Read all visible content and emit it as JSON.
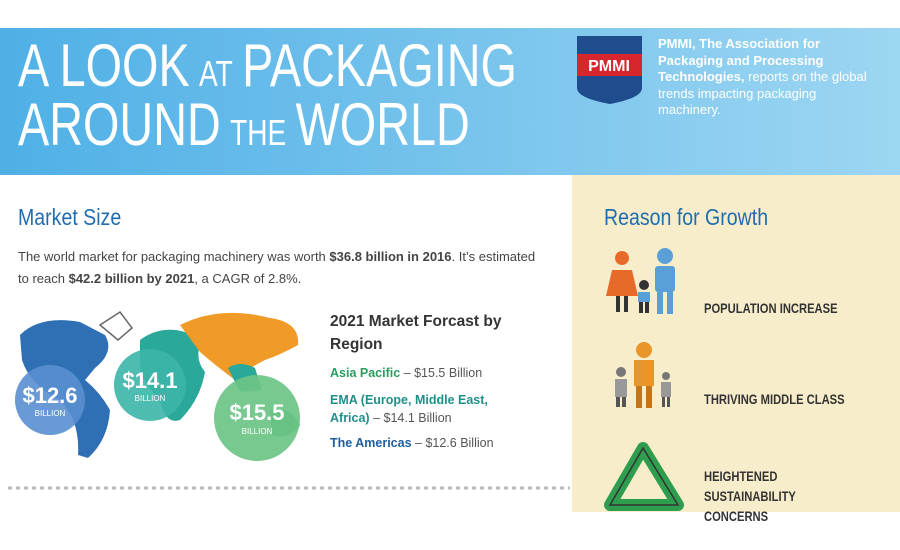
{
  "header": {
    "title_line1": [
      "A LOOK",
      "AT",
      "PACKAGING"
    ],
    "title_line2": [
      "AROUND",
      "THE",
      "WORLD"
    ],
    "logo": "PMMI",
    "intro": [
      "PMMI, The Association for Packaging and Processing Technologies,",
      "reports on the global trends impacting packaging machinery."
    ]
  },
  "market_size": {
    "heading": "Market Size",
    "paragraph": [
      "The world market for packaging machinery was worth ",
      "$36.8 billion in 2016",
      ". It’s estimated to reach ",
      "$42.2 billion by 2021",
      ", a CAGR of 2.8%."
    ],
    "forecast_title": "2021 Market Forcast by Region",
    "regions": [
      {
        "name": "Asia Pacific",
        "value": "– $15.5 Billion",
        "bubble": "$15.5",
        "unit": "BILLION"
      },
      {
        "name": "EMA (Europe, Middle East, Africa)",
        "value": "– $14.1 Billion",
        "bubble": "$14.1",
        "unit": "BILLION"
      },
      {
        "name": "The Americas",
        "value": "– $12.6 Billion",
        "bubble": "$12.6",
        "unit": "BILLION"
      }
    ]
  },
  "growth": {
    "heading": "Reason for Growth",
    "reasons": [
      "POPULATION INCREASE",
      "THRIVING MIDDLE CLASS",
      "HEIGHTENED SUSTAINABILITY CONCERNS"
    ]
  }
}
